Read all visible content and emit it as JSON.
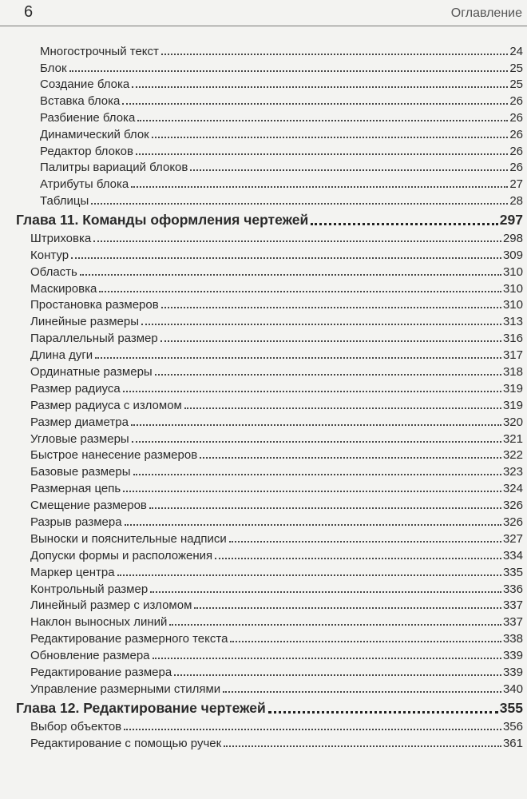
{
  "header": {
    "page_number": "6",
    "section": "Оглавление"
  },
  "continued_items": [
    {
      "title": "Многострочный текст",
      "page": "24"
    },
    {
      "title": "Блок",
      "page": "25"
    },
    {
      "title": "Создание блока",
      "page": "25"
    },
    {
      "title": "Вставка блока",
      "page": "26"
    },
    {
      "title": "Разбиение блока",
      "page": "26"
    },
    {
      "title": "Динамический блок",
      "page": "26"
    },
    {
      "title": "Редактор блоков",
      "page": "26"
    },
    {
      "title": "Палитры вариаций блоков",
      "page": "26"
    },
    {
      "title": "Атрибуты блока",
      "page": "27"
    },
    {
      "title": "Таблицы",
      "page": "28"
    }
  ],
  "chapters": [
    {
      "title": "Глава 11. Команды оформления чертежей",
      "page": "297",
      "items": [
        {
          "title": "Штриховка",
          "page": "298"
        },
        {
          "title": "Контур",
          "page": "309"
        },
        {
          "title": "Область",
          "page": "310"
        },
        {
          "title": "Маскировка",
          "page": "310"
        },
        {
          "title": "Простановка размеров",
          "page": "310"
        },
        {
          "title": "Линейные размеры",
          "page": "313"
        },
        {
          "title": "Параллельный размер",
          "page": "316"
        },
        {
          "title": "Длина дуги",
          "page": "317"
        },
        {
          "title": "Ординатные размеры",
          "page": "318"
        },
        {
          "title": "Размер радиуса",
          "page": "319"
        },
        {
          "title": "Размер радиуса с изломом",
          "page": "319"
        },
        {
          "title": "Размер диаметра",
          "page": "320"
        },
        {
          "title": "Угловые размеры",
          "page": "321"
        },
        {
          "title": "Быстрое нанесение размеров",
          "page": "322"
        },
        {
          "title": "Базовые размеры",
          "page": "323"
        },
        {
          "title": "Размерная цепь",
          "page": "324"
        },
        {
          "title": "Смещение размеров",
          "page": "326"
        },
        {
          "title": "Разрыв размера",
          "page": "326"
        },
        {
          "title": "Выноски и пояснительные надписи",
          "page": "327"
        },
        {
          "title": "Допуски формы и расположения",
          "page": "334"
        },
        {
          "title": "Маркер центра",
          "page": "335"
        },
        {
          "title": "Контрольный размер",
          "page": "336"
        },
        {
          "title": "Линейный размер с изломом",
          "page": "337"
        },
        {
          "title": "Наклон выносных линий",
          "page": "337"
        },
        {
          "title": "Редактирование размерного текста",
          "page": "338"
        },
        {
          "title": "Обновление размера",
          "page": "339"
        },
        {
          "title": "Редактирование размера",
          "page": "339"
        },
        {
          "title": "Управление размерными стилями",
          "page": "340"
        }
      ]
    },
    {
      "title": "Глава 12. Редактирование чертежей",
      "page": "355",
      "items": [
        {
          "title": "Выбор объектов",
          "page": "356"
        },
        {
          "title": "Редактирование с помощью ручек",
          "page": "361"
        }
      ]
    }
  ]
}
